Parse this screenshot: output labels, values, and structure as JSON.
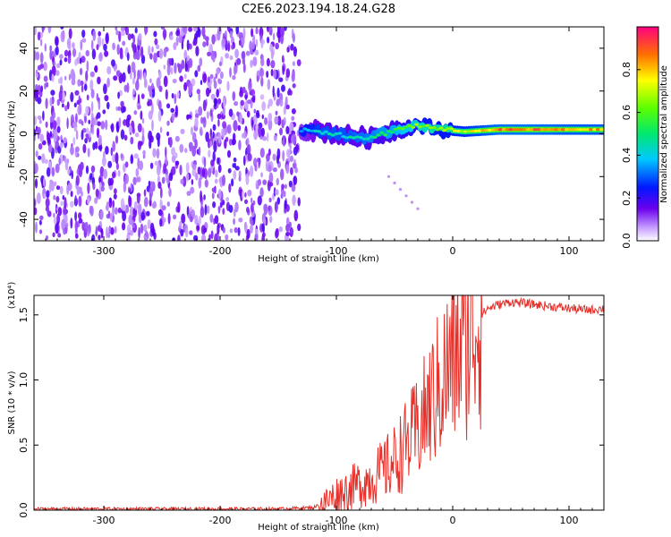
{
  "title": "C2E6.2023.194.18.24.G28",
  "chart_data": [
    {
      "type": "heatmap",
      "description_key": "spectrogram",
      "xlabel": "Height of straight line (km)",
      "ylabel": "Frequency (Hz)",
      "xlim": [
        -360,
        130
      ],
      "ylim": [
        -50,
        50
      ],
      "xticks": [
        -300,
        -200,
        -100,
        0,
        100
      ],
      "yticks": [
        -40,
        -20,
        0,
        20,
        40
      ],
      "colorbar": {
        "label": "Normalized spectral amplitude",
        "range": [
          0.0,
          1.0
        ],
        "ticks": [
          "0.0",
          "0.2",
          "0.4",
          "0.6",
          "0.8"
        ]
      },
      "noise_region": {
        "x_range": [
          -360,
          -132
        ],
        "freq_range": [
          -50,
          50
        ],
        "amplitude": 0.12
      },
      "signal_ridge": [
        {
          "x": -130,
          "freq": 2,
          "amp": 0.35
        },
        {
          "x": -110,
          "freq": 1,
          "amp": 0.45
        },
        {
          "x": -90,
          "freq": -1,
          "amp": 0.45
        },
        {
          "x": -70,
          "freq": -2,
          "amp": 0.5
        },
        {
          "x": -50,
          "freq": 2,
          "amp": 0.55
        },
        {
          "x": -30,
          "freq": 4,
          "amp": 0.65
        },
        {
          "x": -10,
          "freq": 2,
          "amp": 0.7
        },
        {
          "x": 10,
          "freq": 1,
          "amp": 0.75
        },
        {
          "x": 40,
          "freq": 2,
          "amp": 0.9
        },
        {
          "x": 70,
          "freq": 2,
          "amp": 0.9
        },
        {
          "x": 100,
          "freq": 2,
          "amp": 0.85
        },
        {
          "x": 130,
          "freq": 2,
          "amp": 0.85
        }
      ]
    },
    {
      "type": "line",
      "xlabel": "Height of straight line (km)",
      "ylabel": "SNR (10 * v/v)",
      "y_multiplier": "(x10⁴)",
      "xlim": [
        -360,
        130
      ],
      "ylim": [
        0,
        1.65
      ],
      "xticks": [
        -300,
        -200,
        -100,
        0,
        100
      ],
      "yticks": [
        "0.0",
        "0.5",
        "1.0",
        "1.5"
      ],
      "series": [
        {
          "color": "#e8302a",
          "x": [
            -360,
            -300,
            -250,
            -200,
            -150,
            -120,
            -110,
            -100,
            -90,
            -80,
            -70,
            -60,
            -50,
            -40,
            -30,
            -20,
            -10,
            0,
            10,
            20,
            30,
            40,
            50,
            60,
            70,
            80,
            90,
            100,
            110,
            120,
            130
          ],
          "y": [
            0.01,
            0.01,
            0.01,
            0.01,
            0.01,
            0.02,
            0.06,
            0.12,
            0.16,
            0.2,
            0.24,
            0.3,
            0.38,
            0.5,
            0.62,
            0.8,
            0.98,
            1.15,
            1.3,
            1.45,
            1.55,
            1.58,
            1.6,
            1.59,
            1.58,
            1.57,
            1.56,
            1.55,
            1.54,
            1.54,
            1.55
          ]
        }
      ]
    }
  ]
}
